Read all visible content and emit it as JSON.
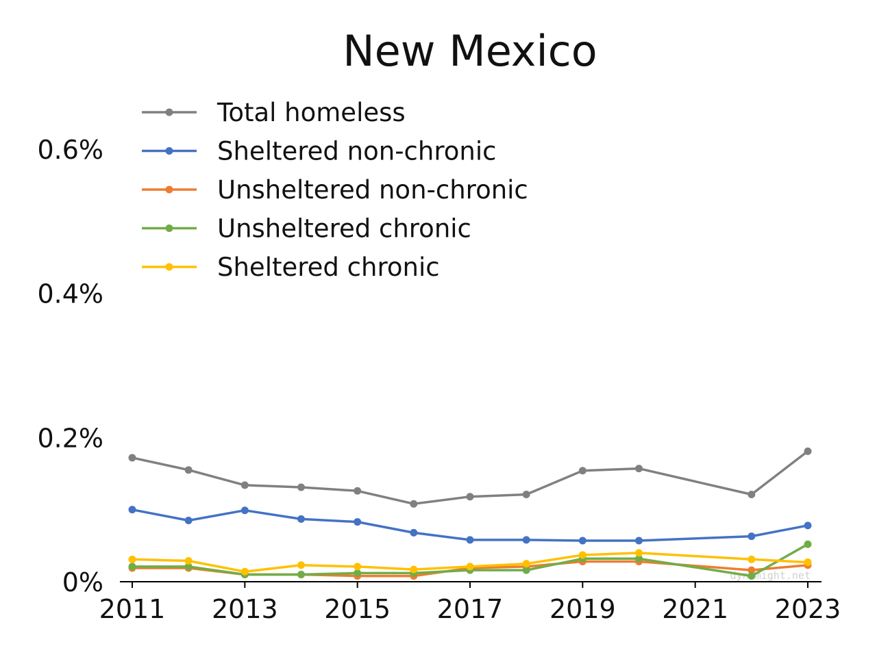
{
  "chart_data": {
    "type": "line",
    "title": "New Mexico",
    "xlabel": "",
    "ylabel": "",
    "x": [
      2011,
      2012,
      2013,
      2014,
      2015,
      2016,
      2017,
      2018,
      2019,
      2020,
      2022,
      2023
    ],
    "xlim": [
      2011,
      2023
    ],
    "ylim": [
      0,
      0.006
    ],
    "x_ticks": [
      2011,
      2013,
      2015,
      2017,
      2019,
      2021,
      2023
    ],
    "x_tick_labels": [
      "2011",
      "2013",
      "2015",
      "2017",
      "2019",
      "2021",
      "2023"
    ],
    "y_ticks": [
      0,
      0.002,
      0.004,
      0.006
    ],
    "y_tick_labels": [
      "0%",
      "0.2%",
      "0.4%",
      "0.6%"
    ],
    "grid": false,
    "legend_position": "top-left",
    "watermark": "dynomight.net",
    "series": [
      {
        "name": "Total homeless",
        "color": "#808080",
        "values": [
          0.00172,
          0.00155,
          0.00134,
          0.00131,
          0.00126,
          0.00108,
          0.00118,
          0.00121,
          0.00154,
          0.00157,
          0.00121,
          0.00181
        ]
      },
      {
        "name": "Sheltered non-chronic",
        "color": "#4472c4",
        "values": [
          0.001,
          0.00085,
          0.00099,
          0.00087,
          0.00083,
          0.00068,
          0.00058,
          0.00058,
          0.00057,
          0.00057,
          0.00063,
          0.00078
        ]
      },
      {
        "name": "Unsheltered non-chronic",
        "color": "#ed7d31",
        "values": [
          0.00019,
          0.00019,
          0.0001,
          0.0001,
          8e-05,
          8e-05,
          0.00019,
          0.00021,
          0.00028,
          0.00028,
          0.00016,
          0.00023
        ]
      },
      {
        "name": "Unsheltered chronic",
        "color": "#70ad47",
        "values": [
          0.00021,
          0.00021,
          0.0001,
          0.0001,
          0.00012,
          0.00012,
          0.00016,
          0.00016,
          0.00032,
          0.00032,
          8e-05,
          0.00052
        ]
      },
      {
        "name": "Sheltered chronic",
        "color": "#ffc000",
        "values": [
          0.00031,
          0.00029,
          0.00014,
          0.00023,
          0.00021,
          0.00017,
          0.00021,
          0.00025,
          0.00037,
          0.0004,
          0.00031,
          0.00027
        ]
      }
    ]
  }
}
